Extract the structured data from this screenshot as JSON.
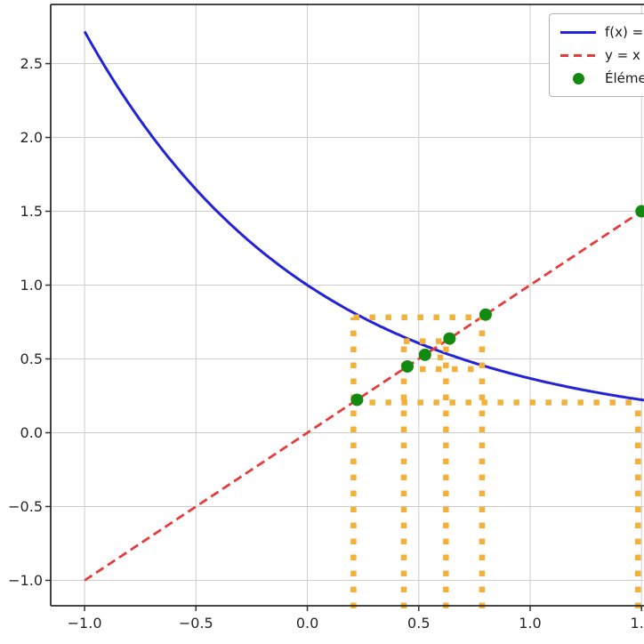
{
  "figure": {
    "legend": {
      "entries": [
        {
          "label": "f(x) =",
          "sample": "solid-line",
          "color": "#2323d8"
        },
        {
          "label": "y = x",
          "sample": "dashed-line",
          "color": "#e73c3c"
        },
        {
          "label": "Éléme",
          "sample": "dot",
          "color": "#128a12"
        }
      ]
    }
  },
  "chart_data": {
    "type": "line",
    "title": "",
    "xlabel": "",
    "ylabel": "",
    "grid": true,
    "grid_color": "#cdcdcd",
    "spine_color": "#2b2b2b",
    "legend_position": "upper right, clipped by image edge",
    "xlim": [
      -1.152,
      1.511
    ],
    "ylim": [
      -1.172,
      2.901
    ],
    "xticks": {
      "values": [
        -1.0,
        -0.5,
        0.0,
        0.5,
        1.0,
        1.5
      ],
      "labels": [
        "−1.0",
        "−0.5",
        "0.0",
        "0.5",
        "1.0",
        "1.5"
      ]
    },
    "yticks": {
      "values": [
        -1.0,
        -0.5,
        0.0,
        0.5,
        1.0,
        1.5,
        2.0,
        2.5
      ],
      "labels": [
        "−1.0",
        "−0.5",
        "0.0",
        "0.5",
        "1.0",
        "1.5",
        "2.0",
        "2.5"
      ]
    },
    "series": [
      {
        "name": "f(x) =",
        "kind": "function",
        "formula": "exp(-x)",
        "x_start": -1.0,
        "x_end": 1.52,
        "color": "#2323d8",
        "style": "solid",
        "width": 3
      },
      {
        "name": "y = x",
        "kind": "line",
        "points": [
          [
            -1.0,
            -1.0
          ],
          [
            1.5,
            1.5
          ]
        ],
        "color": "#e73c3c",
        "style": "dashed",
        "width": 2.8
      },
      {
        "name": "Éléme",
        "kind": "scatter",
        "points": [
          [
            1.5,
            1.5
          ],
          [
            0.223,
            0.223
          ],
          [
            0.8,
            0.8
          ],
          [
            0.449,
            0.449
          ],
          [
            0.638,
            0.638
          ],
          [
            0.528,
            0.528
          ]
        ],
        "color": "#128a12",
        "marker": "circle",
        "marker_radius": 7
      }
    ],
    "construction_lines": {
      "color": "#f2b13d",
      "style": "dotted",
      "width": 6.5,
      "verticals": [
        {
          "x": 0.223,
          "y_from": -1.172,
          "y_to": 0.8
        },
        {
          "x": 0.449,
          "y_from": -1.172,
          "y_to": 0.638
        },
        {
          "x": 0.638,
          "y_from": -1.172,
          "y_to": 0.638
        },
        {
          "x": 0.8,
          "y_from": -1.172,
          "y_to": 0.8
        },
        {
          "x": 1.5,
          "y_from": -1.172,
          "y_to": 0.223
        }
      ],
      "horizontals": [
        {
          "y": 0.223,
          "x_from": 0.223,
          "x_to": 1.5
        },
        {
          "y": 0.8,
          "x_from": 0.223,
          "x_to": 0.8
        },
        {
          "y": 0.449,
          "x_from": 0.449,
          "x_to": 0.8
        },
        {
          "y": 0.638,
          "x_from": 0.449,
          "x_to": 0.638
        },
        {
          "y": 0.528,
          "x_from": 0.528,
          "x_to": 0.638
        }
      ]
    }
  }
}
